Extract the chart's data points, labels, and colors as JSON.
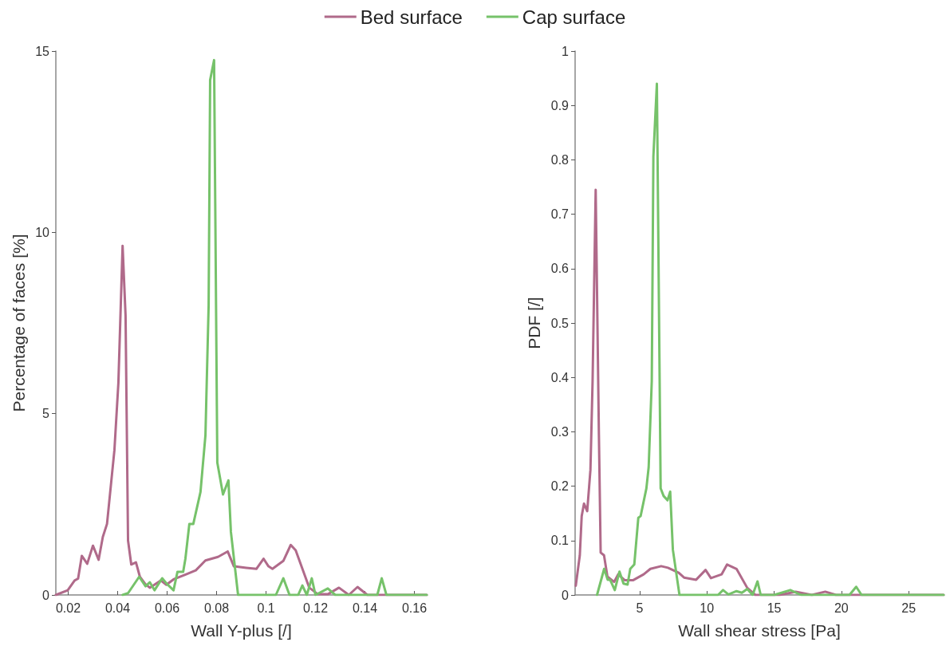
{
  "chart_data": [
    {
      "type": "line",
      "xlabel": "Wall Y-plus [/]",
      "ylabel": "Percentage of faces [%]",
      "xlim": [
        0.015,
        0.165
      ],
      "ylim": [
        0,
        15
      ],
      "xticks": [
        0.02,
        0.04,
        0.06,
        0.08,
        0.1,
        0.12,
        0.14,
        0.16
      ],
      "yticks": [
        0,
        5,
        10,
        15
      ],
      "grid": false,
      "legend": "top",
      "marker": "none",
      "line_style": "solid",
      "series": [
        {
          "name": "Bed surface",
          "color": "#b06a8a",
          "x": [
            0.015,
            0.0198,
            0.0226,
            0.024,
            0.0255,
            0.0277,
            0.03,
            0.0323,
            0.034,
            0.0357,
            0.0387,
            0.0403,
            0.042,
            0.0432,
            0.0442,
            0.0455,
            0.0474,
            0.049,
            0.0512,
            0.053,
            0.0575,
            0.0597,
            0.0626,
            0.0677,
            0.0716,
            0.0755,
            0.0806,
            0.0845,
            0.087,
            0.092,
            0.0961,
            0.099,
            0.101,
            0.1026,
            0.107,
            0.11,
            0.112,
            0.1175,
            0.121,
            0.125,
            0.1295,
            0.1335,
            0.137,
            0.141,
            0.165
          ],
          "values": [
            0,
            0.13,
            0.4,
            0.45,
            1.08,
            0.86,
            1.36,
            0.97,
            1.6,
            1.96,
            4.0,
            5.85,
            9.63,
            7.7,
            1.5,
            0.84,
            0.9,
            0.5,
            0.3,
            0.2,
            0.4,
            0.28,
            0.43,
            0.57,
            0.68,
            0.95,
            1.05,
            1.2,
            0.79,
            0.75,
            0.72,
            1.0,
            0.79,
            0.72,
            0.94,
            1.38,
            1.23,
            0.2,
            0.02,
            0.02,
            0.2,
            0,
            0.22,
            0,
            0
          ]
        },
        {
          "name": "Cap surface",
          "color": "#76c26a",
          "x": [
            0.042,
            0.0442,
            0.0487,
            0.0513,
            0.053,
            0.0549,
            0.058,
            0.06,
            0.0626,
            0.0642,
            0.0665,
            0.0674,
            0.069,
            0.0706,
            0.0735,
            0.0755,
            0.0768,
            0.0774,
            0.079,
            0.0803,
            0.0826,
            0.0848,
            0.0858,
            0.0887,
            0.104,
            0.107,
            0.1095,
            0.113,
            0.1147,
            0.1165,
            0.1185,
            0.12,
            0.125,
            0.128,
            0.145,
            0.1468,
            0.1487,
            0.165
          ],
          "values": [
            0,
            0.05,
            0.5,
            0.24,
            0.35,
            0.13,
            0.46,
            0.3,
            0.13,
            0.64,
            0.64,
            1.0,
            1.96,
            1.96,
            2.84,
            4.4,
            8.0,
            14.2,
            14.75,
            3.65,
            2.77,
            3.16,
            1.74,
            0,
            0,
            0.46,
            0,
            0,
            0.26,
            0,
            0.46,
            0,
            0.18,
            0,
            0,
            0.46,
            0,
            0
          ]
        }
      ]
    },
    {
      "type": "line",
      "xlabel": "Wall shear stress [Pa]",
      "ylabel": "PDF [/]",
      "xlim": [
        0.2,
        27.6
      ],
      "ylim": [
        0,
        1
      ],
      "xticks": [
        5,
        10,
        15,
        20,
        25
      ],
      "yticks": [
        0,
        0.1,
        0.2,
        0.3,
        0.4,
        0.5,
        0.6,
        0.7,
        0.8,
        0.9,
        1
      ],
      "grid": false,
      "legend": false,
      "marker": "none",
      "line_style": "solid",
      "series": [
        {
          "color": "#b06a8a",
          "x": [
            0.25,
            0.55,
            0.69,
            0.86,
            1.1,
            1.34,
            1.5,
            1.73,
            1.97,
            2.1,
            2.35,
            2.6,
            3.1,
            3.4,
            3.9,
            4.5,
            5.3,
            5.8,
            6.6,
            7.1,
            7.9,
            8.3,
            9.2,
            9.9,
            10.3,
            11.1,
            11.5,
            12.2,
            13.0,
            13.6,
            15.4,
            16.6,
            17.8,
            18.8,
            19.6,
            27.6
          ],
          "values": [
            0.017,
            0.073,
            0.145,
            0.168,
            0.154,
            0.23,
            0.393,
            0.745,
            0.294,
            0.078,
            0.073,
            0.034,
            0.024,
            0.038,
            0.027,
            0.027,
            0.038,
            0.048,
            0.053,
            0.05,
            0.041,
            0.032,
            0.028,
            0.046,
            0.031,
            0.038,
            0.056,
            0.048,
            0.013,
            0,
            0,
            0.006,
            0,
            0.006,
            0,
            0
          ]
        },
        {
          "color": "#76c26a",
          "x": [
            1.83,
            2.36,
            2.62,
            2.8,
            3.15,
            3.5,
            3.8,
            4.1,
            4.3,
            4.6,
            4.9,
            5.07,
            5.5,
            5.67,
            5.9,
            6.02,
            6.28,
            6.56,
            6.78,
            7.07,
            7.27,
            7.47,
            7.96,
            10.83,
            11.2,
            11.6,
            12.2,
            12.6,
            13.0,
            13.4,
            13.76,
            14.0,
            15.0,
            16.2,
            17.0,
            20.6,
            21.1,
            21.5,
            27.6
          ],
          "values": [
            0,
            0.048,
            0.028,
            0.028,
            0.009,
            0.043,
            0.021,
            0.019,
            0.048,
            0.056,
            0.142,
            0.145,
            0.196,
            0.235,
            0.393,
            0.806,
            0.94,
            0.196,
            0.182,
            0.174,
            0.19,
            0.083,
            0,
            0,
            0.009,
            0.001,
            0.007,
            0.004,
            0.011,
            0,
            0.025,
            0,
            0,
            0.009,
            0,
            0,
            0.015,
            0,
            0
          ]
        }
      ]
    }
  ]
}
